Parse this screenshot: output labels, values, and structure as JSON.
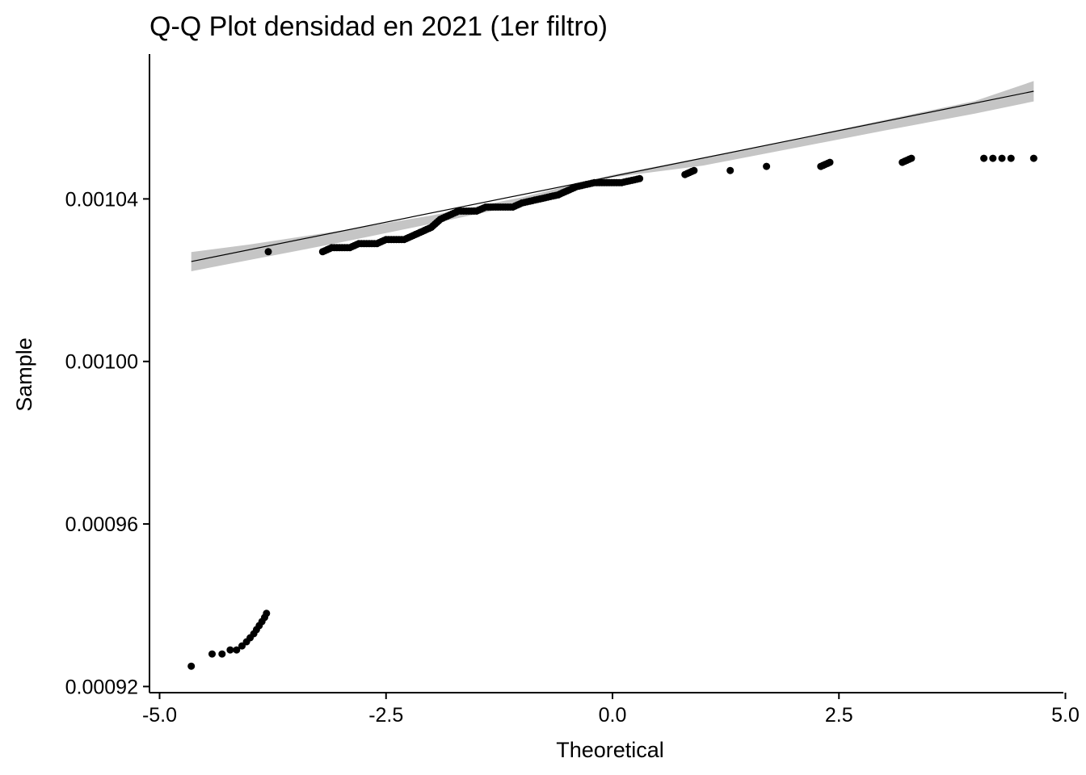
{
  "chart_data": {
    "type": "scatter",
    "title": "Q-Q Plot densidad en 2021 (1er filtro)",
    "xlabel": "Theoretical",
    "ylabel": "Sample",
    "xlim": [
      -5.0,
      5.0
    ],
    "ylim": [
      0.00092,
      0.00108
    ],
    "x_ticks": [
      {
        "value": -5.0,
        "label": "-5.0"
      },
      {
        "value": -2.5,
        "label": "-2.5"
      },
      {
        "value": 0.0,
        "label": "0.0"
      },
      {
        "value": 2.5,
        "label": "2.5"
      },
      {
        "value": 5.0,
        "label": "5.0"
      }
    ],
    "y_ticks": [
      {
        "value": 0.00092,
        "label": "0.00092"
      },
      {
        "value": 0.00096,
        "label": "0.00096"
      },
      {
        "value": 0.001,
        "label": "0.00100"
      },
      {
        "value": 0.00104,
        "label": "0.00104"
      }
    ],
    "grid": false,
    "reference_line": {
      "x": [
        -4.65,
        4.65
      ],
      "y": [
        0.0010246,
        0.0010665
      ],
      "color": "#000000"
    },
    "confidence_band": {
      "color": "#bfbfbf",
      "x": [
        -4.65,
        -4.0,
        -3.0,
        -2.0,
        -1.0,
        0.0,
        1.0,
        2.0,
        3.0,
        4.0,
        4.65
      ],
      "upper": [
        0.0010269,
        0.0010288,
        0.0010322,
        0.0010359,
        0.0010404,
        0.0010459,
        0.0010502,
        0.0010547,
        0.0010594,
        0.0010641,
        0.001069
      ],
      "lower": [
        0.0010222,
        0.001025,
        0.0010293,
        0.0010339,
        0.0010386,
        0.0010453,
        0.0010482,
        0.0010525,
        0.0010568,
        0.001061,
        0.001064
      ]
    },
    "series": [
      {
        "values": [
          [
            -4.65,
            0.000925
          ],
          [
            -4.42,
            0.000928
          ],
          [
            -4.31,
            0.000928
          ],
          [
            -4.22,
            0.000929
          ],
          [
            -4.15,
            0.000929
          ],
          [
            -4.09,
            0.00093
          ],
          [
            -4.04,
            0.000931
          ],
          [
            -4.0,
            0.000932
          ],
          [
            -3.96,
            0.000933
          ],
          [
            -3.93,
            0.000934
          ],
          [
            -3.9,
            0.000935
          ],
          [
            -3.87,
            0.000936
          ],
          [
            -3.84,
            0.000937
          ],
          [
            -3.82,
            0.000938
          ],
          [
            -3.8,
            0.001027
          ],
          [
            -3.2,
            0.001027
          ],
          [
            -3.1,
            0.001028
          ],
          [
            -2.9,
            0.001028
          ],
          [
            -2.8,
            0.001029
          ],
          [
            -2.6,
            0.001029
          ],
          [
            -2.5,
            0.00103
          ],
          [
            -2.3,
            0.00103
          ],
          [
            -2.2,
            0.001031
          ],
          [
            -2.1,
            0.001032
          ],
          [
            -2.0,
            0.001033
          ],
          [
            -1.9,
            0.001035
          ],
          [
            -1.8,
            0.001036
          ],
          [
            -1.7,
            0.001037
          ],
          [
            -1.5,
            0.001037
          ],
          [
            -1.4,
            0.001038
          ],
          [
            -1.1,
            0.001038
          ],
          [
            -1.0,
            0.001039
          ],
          [
            -0.8,
            0.00104
          ],
          [
            -0.6,
            0.001041
          ],
          [
            -0.5,
            0.001042
          ],
          [
            -0.4,
            0.001043
          ],
          [
            -0.2,
            0.001044
          ],
          [
            0.1,
            0.001044
          ],
          [
            0.3,
            0.001045
          ],
          [
            0.8,
            0.001046
          ],
          [
            0.9,
            0.001047
          ],
          [
            1.3,
            0.001047
          ],
          [
            1.7,
            0.001048
          ],
          [
            2.3,
            0.001048
          ],
          [
            2.4,
            0.001049
          ],
          [
            3.2,
            0.001049
          ],
          [
            3.3,
            0.00105
          ],
          [
            4.1,
            0.00105
          ],
          [
            4.2,
            0.00105
          ],
          [
            4.3,
            0.00105
          ],
          [
            4.4,
            0.00105
          ],
          [
            4.65,
            0.00105
          ]
        ],
        "color": "#000000"
      }
    ]
  }
}
